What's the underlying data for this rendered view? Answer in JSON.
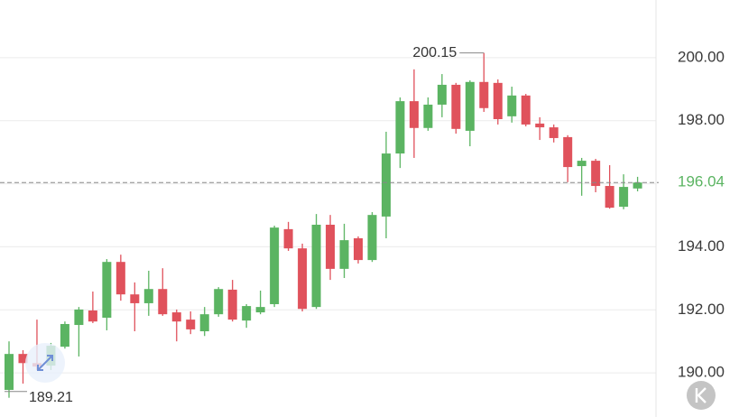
{
  "chart_data": {
    "type": "candlestick",
    "categories": [
      null,
      null,
      null,
      null,
      null,
      null,
      null,
      null,
      null,
      null,
      null,
      null,
      null,
      null,
      null,
      null,
      null,
      null,
      null,
      null,
      null,
      null,
      null,
      null,
      null,
      null,
      null,
      null,
      null,
      null,
      null,
      null,
      null,
      null,
      null,
      null,
      null,
      null,
      null,
      null,
      null,
      null,
      null,
      null,
      null,
      null
    ],
    "open": [
      189.46,
      190.6,
      190.31,
      190.23,
      190.83,
      191.52,
      191.98,
      191.75,
      193.52,
      192.49,
      192.21,
      192.66,
      191.92,
      191.69,
      191.32,
      191.86,
      192.64,
      191.66,
      191.92,
      192.18,
      194.56,
      193.95,
      192.09,
      194.7,
      193.3,
      194.27,
      193.58,
      194.96,
      196.96,
      198.62,
      197.77,
      198.51,
      199.14,
      197.68,
      199.23,
      199.2,
      198.14,
      198.8,
      197.91,
      197.79,
      197.48,
      196.56,
      196.73,
      195.93,
      195.27,
      195.85
    ],
    "high": [
      191.0,
      190.72,
      191.69,
      190.95,
      191.63,
      192.09,
      192.58,
      193.61,
      193.75,
      192.87,
      193.24,
      193.32,
      192.01,
      191.95,
      192.09,
      192.72,
      192.95,
      192.18,
      192.61,
      194.67,
      194.79,
      194.1,
      195.04,
      195.01,
      194.73,
      194.33,
      195.1,
      197.65,
      198.74,
      199.63,
      198.74,
      199.48,
      199.2,
      199.28,
      200.15,
      199.31,
      199.08,
      198.85,
      198.11,
      197.88,
      197.54,
      196.82,
      196.79,
      196.59,
      196.3,
      196.22
    ],
    "low": [
      189.21,
      189.66,
      190.09,
      190.09,
      190.77,
      190.52,
      191.58,
      191.35,
      192.29,
      191.32,
      191.81,
      191.81,
      191.0,
      191.23,
      191.17,
      191.78,
      191.63,
      191.43,
      191.86,
      192.09,
      193.87,
      191.95,
      192.03,
      192.95,
      193.01,
      193.47,
      193.52,
      194.27,
      196.5,
      196.82,
      197.68,
      198.11,
      197.59,
      197.19,
      198.28,
      197.88,
      197.94,
      197.82,
      197.39,
      197.31,
      196.05,
      195.62,
      195.73,
      195.21,
      195.19,
      195.76
    ],
    "close": [
      190.6,
      190.31,
      190.2,
      190.86,
      191.55,
      192.01,
      191.63,
      193.52,
      192.49,
      192.21,
      192.66,
      191.86,
      191.63,
      191.38,
      191.86,
      192.66,
      191.69,
      192.12,
      192.09,
      194.61,
      193.95,
      192.03,
      194.7,
      193.3,
      194.21,
      193.58,
      195.01,
      196.96,
      198.62,
      197.77,
      198.51,
      199.14,
      197.74,
      199.23,
      198.4,
      198.05,
      198.8,
      197.88,
      197.79,
      197.45,
      196.53,
      196.73,
      195.93,
      195.24,
      195.9,
      196.04
    ],
    "up_color": "#5bb462",
    "down_color": "#e0525c",
    "ylim": [
      188.6,
      201.83
    ],
    "yticks": [
      {
        "value": 190,
        "label": "190.00"
      },
      {
        "value": 192,
        "label": "192.00"
      },
      {
        "value": 194,
        "label": "194.00"
      },
      {
        "value": 196,
        "label": "196.00"
      },
      {
        "value": 198,
        "label": "198.00"
      },
      {
        "value": 200,
        "label": "200.00"
      }
    ],
    "grid": true,
    "last_price": 196.04,
    "high_marker": 200.15,
    "low_marker": 189.21
  }
}
